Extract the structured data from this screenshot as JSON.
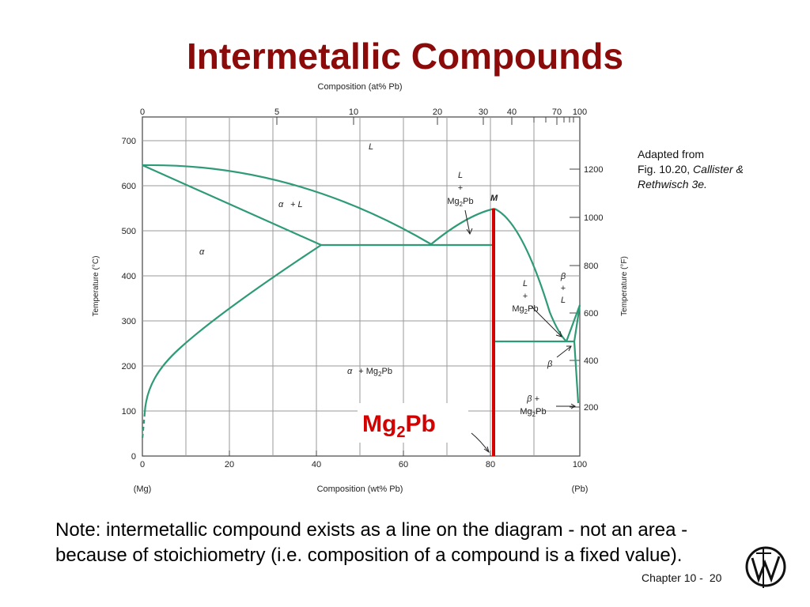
{
  "slide": {
    "title": "Intermetallic Compounds",
    "source_line1": "Adapted from",
    "source_line2_prefix": "Fig. 10.20, ",
    "source_line2_italic": "Callister &",
    "source_line3": "Rethwisch 3e.",
    "note": "Note: intermetallic compound exists as a line on the diagram - not an area - because of stoichiometry (i.e. composition of a compound is a fixed value).",
    "footer_chapter": "Chapter 10 -",
    "footer_page": "20",
    "logo_icon": "wiley-logo-icon"
  },
  "colors": {
    "title": "#8b0b0b",
    "phase_lines": "#2e9a78",
    "compound_line": "#d40000"
  },
  "chart_data": {
    "type": "phase_diagram",
    "top_axis": {
      "title": "Composition (at% Pb)",
      "tick_labels": [
        "0",
        "5",
        "10",
        "20",
        "30",
        "40",
        "70",
        "100"
      ]
    },
    "bottom_axis": {
      "title": "Composition (wt% Pb)",
      "tick_labels": [
        "0",
        "20",
        "40",
        "60",
        "80",
        "100"
      ],
      "left_end": "(Mg)",
      "right_end": "(Pb)"
    },
    "left_axis": {
      "title": "Temperature (°C)",
      "tick_labels": [
        "0",
        "100",
        "200",
        "300",
        "400",
        "500",
        "600",
        "700"
      ]
    },
    "right_axis": {
      "title": "Temperature (°F)",
      "tick_labels": [
        "200",
        "400",
        "600",
        "800",
        "1000",
        "1200"
      ]
    },
    "xlim": [
      0,
      100
    ],
    "ylim": [
      0,
      700
    ],
    "phase_labels": {
      "liquid": "L",
      "alpha_liquid_1": "α",
      "alpha_liquid_2": "+ L",
      "alpha": "α",
      "l_mg2pb_top_1": "L",
      "l_mg2pb_top_2": "+",
      "l_mg2pb_top_3": "Mg",
      "l_mg2pb_top_sub": "2",
      "l_mg2pb_top_4": "Pb",
      "max_point": "M",
      "l_mg2pb_right_1": "L",
      "l_mg2pb_right_2": "+",
      "l_mg2pb_right_3": "Mg",
      "l_mg2pb_right_sub": "2",
      "l_mg2pb_right_4": "Pb",
      "beta_l_1": "β",
      "beta_l_2": "+",
      "beta_l_3": "L",
      "beta": "β",
      "alpha_mg2pb_1": "α",
      "alpha_mg2pb_2": "+ Mg",
      "alpha_mg2pb_sub": "2",
      "alpha_mg2pb_3": "Pb",
      "beta_mg2pb_1": "β  +",
      "beta_mg2pb_2": "Mg",
      "beta_mg2pb_sub": "2",
      "beta_mg2pb_3": "Pb",
      "compound_1": "Mg",
      "compound_sub": "2",
      "compound_2": "Pb"
    },
    "key_points": {
      "mg_melting": {
        "x": 0,
        "y": 645
      },
      "eutectic_1": {
        "x": 67,
        "y": 466
      },
      "alpha_max_solubility": {
        "x": 41,
        "y": 466
      },
      "mg2pb_melting": {
        "x": 81,
        "y": 550
      },
      "mg2pb_composition": {
        "x": 81
      },
      "eutectic_2": {
        "x": 97,
        "y": 250
      },
      "pb_melting": {
        "x": 100,
        "y": 327
      }
    }
  }
}
